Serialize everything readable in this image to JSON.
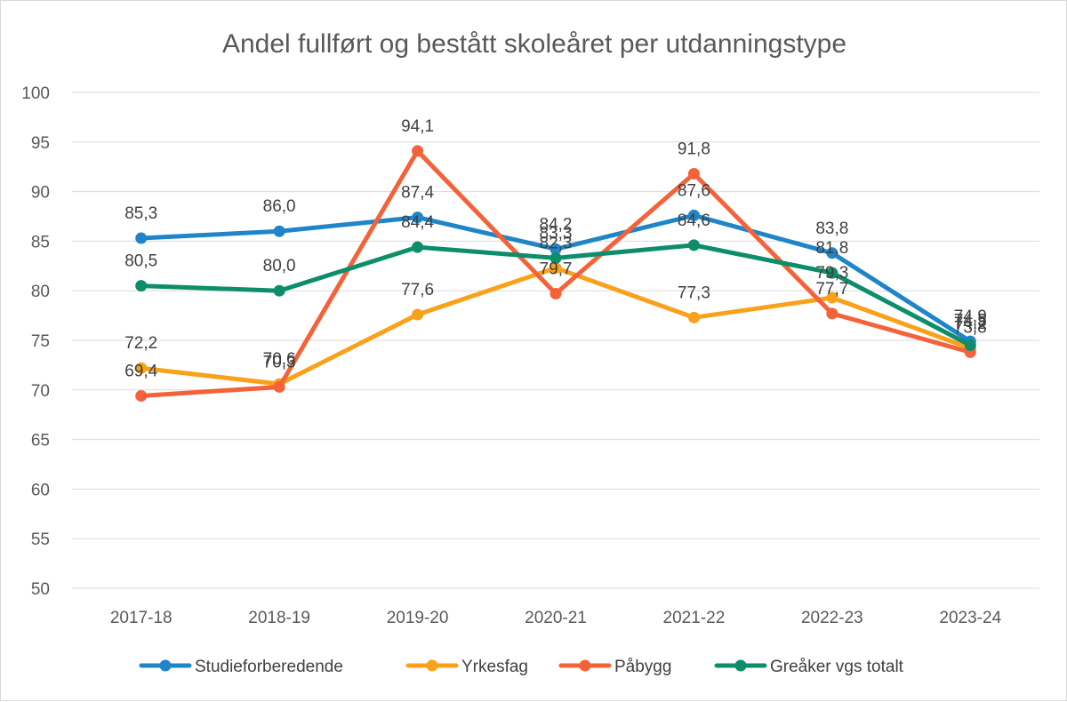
{
  "chart_data": {
    "type": "line",
    "title": "Andel fullført og bestått skoleåret per utdanningstype",
    "categories": [
      "2017-18",
      "2018-19",
      "2019-20",
      "2020-21",
      "2021-22",
      "2022-23",
      "2023-24"
    ],
    "ylim": [
      50,
      100
    ],
    "yticks": [
      "50",
      "55",
      "60",
      "65",
      "70",
      "75",
      "80",
      "85",
      "90",
      "95",
      "100"
    ],
    "grid": true,
    "legend_position": "bottom",
    "series": [
      {
        "name": "Studieforberedende",
        "color": "#1f85c9",
        "values": [
          85.3,
          86.0,
          87.4,
          84.2,
          87.6,
          83.8,
          74.9
        ],
        "labels": [
          "85,3",
          "86,0",
          "87,4",
          "84,2",
          "87,6",
          "83,8",
          "74,9"
        ]
      },
      {
        "name": "Yrkesfag",
        "color": "#f9a11b",
        "values": [
          72.2,
          70.6,
          77.6,
          82.3,
          77.3,
          79.3,
          74.2
        ],
        "labels": [
          "72,2",
          "70,6",
          "77,6",
          "82,3",
          "77,3",
          "79,3",
          "74,2"
        ]
      },
      {
        "name": "Påbygg",
        "color": "#f4623a",
        "values": [
          69.4,
          70.3,
          94.1,
          79.7,
          91.8,
          77.7,
          73.8
        ],
        "labels": [
          "69,4",
          "70,3",
          "94,1",
          "79,7",
          "91,8",
          "77,7",
          "73,8"
        ]
      },
      {
        "name": "Greåker vgs totalt",
        "color": "#0e8d6a",
        "values": [
          80.5,
          80.0,
          84.4,
          83.3,
          84.6,
          81.8,
          74.5
        ],
        "labels": [
          "80,5",
          "80,0",
          "84,4",
          "83,3",
          "84,6",
          "81,8",
          "74,5"
        ]
      }
    ]
  }
}
